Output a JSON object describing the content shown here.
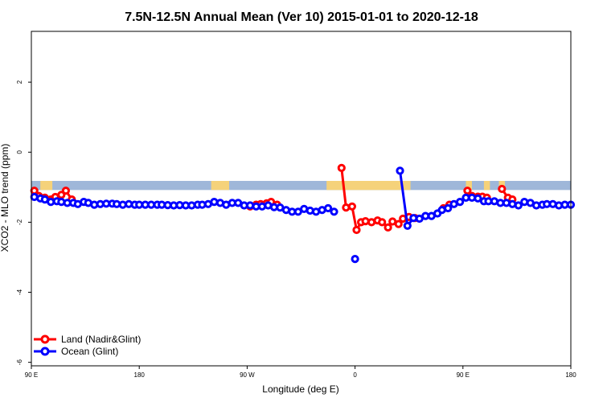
{
  "chart_data": {
    "type": "line",
    "title": "7.5N-12.5N Annual Mean (Ver 10)   2015-01-01 to 2020-12-18",
    "xlabel": "Longitude (deg E)",
    "ylabel": "XCO2 - MLO trend (ppm)",
    "xlim": [
      90,
      450
    ],
    "ylim": [
      -6.1,
      3.45
    ],
    "x_ticks": [
      {
        "value": 90,
        "label": "90 E"
      },
      {
        "value": 162,
        "label": "180"
      },
      {
        "value": 234,
        "label": "90 W"
      },
      {
        "value": 306,
        "label": "0"
      },
      {
        "value": 378,
        "label": "90 E"
      },
      {
        "value": 450,
        "label": "180"
      }
    ],
    "y_ticks": [
      {
        "value": 2,
        "label": "2"
      },
      {
        "value": 0,
        "label": "0"
      },
      {
        "value": -2,
        "label": "-2"
      },
      {
        "value": -4,
        "label": "-4"
      },
      {
        "value": -6,
        "label": "-6"
      }
    ],
    "land_band": {
      "y_top": -0.82,
      "y_bottom": -1.08,
      "color": "#9fb7d9",
      "land_color": "#f5d27a"
    },
    "legend": {
      "position": "bottom-left"
    },
    "series": [
      {
        "name": "Land (Nadir&Glint)",
        "color": "#ff0000",
        "segments": [
          [
            [
              92,
              -1.1
            ],
            [
              95,
              -1.25
            ],
            [
              99,
              -1.3
            ],
            [
              103,
              -1.35
            ],
            [
              106,
              -1.28
            ],
            [
              110,
              -1.22
            ],
            [
              113,
              -1.1
            ],
            [
              117,
              -1.35
            ]
          ],
          [
            [
              236,
              -1.55
            ],
            [
              240,
              -1.5
            ],
            [
              243,
              -1.48
            ],
            [
              247,
              -1.46
            ],
            [
              250,
              -1.42
            ],
            [
              254,
              -1.5
            ]
          ],
          [
            [
              297,
              -0.45
            ],
            [
              300,
              -1.58
            ],
            [
              304,
              -1.55
            ],
            [
              307,
              -2.22
            ],
            [
              310,
              -2.0
            ],
            [
              313,
              -1.97
            ],
            [
              317,
              -2.0
            ],
            [
              321,
              -1.95
            ],
            [
              324,
              -2.0
            ],
            [
              328,
              -2.15
            ],
            [
              331,
              -1.98
            ],
            [
              335,
              -2.05
            ],
            [
              338,
              -1.9
            ],
            [
              342,
              -1.85
            ],
            [
              346,
              -1.88
            ]
          ],
          [
            [
              365,
              -1.6
            ],
            [
              369,
              -1.5
            ]
          ],
          [
            [
              381,
              -1.1
            ],
            [
              384,
              -1.25
            ],
            [
              388,
              -1.27
            ],
            [
              391,
              -1.27
            ],
            [
              394,
              -1.3
            ]
          ],
          [
            [
              404,
              -1.05
            ],
            [
              408,
              -1.3
            ],
            [
              411,
              -1.35
            ]
          ]
        ]
      },
      {
        "name": "Ocean (Glint)",
        "color": "#0000ff",
        "segments": [
          [
            [
              92,
              -1.28
            ],
            [
              96,
              -1.32
            ],
            [
              99,
              -1.35
            ],
            [
              103,
              -1.42
            ],
            [
              107,
              -1.4
            ],
            [
              110,
              -1.42
            ],
            [
              114,
              -1.45
            ],
            [
              118,
              -1.45
            ],
            [
              121,
              -1.48
            ],
            [
              125,
              -1.42
            ],
            [
              128,
              -1.45
            ],
            [
              132,
              -1.5
            ],
            [
              136,
              -1.48
            ],
            [
              140,
              -1.47
            ],
            [
              144,
              -1.47
            ],
            [
              147,
              -1.48
            ],
            [
              151,
              -1.5
            ],
            [
              155,
              -1.48
            ],
            [
              159,
              -1.5
            ],
            [
              162,
              -1.5
            ],
            [
              166,
              -1.5
            ],
            [
              170,
              -1.5
            ],
            [
              174,
              -1.5
            ],
            [
              177,
              -1.5
            ],
            [
              181,
              -1.51
            ],
            [
              185,
              -1.52
            ],
            [
              189,
              -1.51
            ],
            [
              193,
              -1.52
            ],
            [
              197,
              -1.52
            ],
            [
              201,
              -1.5
            ],
            [
              204,
              -1.5
            ],
            [
              208,
              -1.48
            ],
            [
              212,
              -1.42
            ],
            [
              216,
              -1.45
            ],
            [
              220,
              -1.5
            ],
            [
              224,
              -1.45
            ],
            [
              228,
              -1.45
            ],
            [
              232,
              -1.52
            ],
            [
              236,
              -1.52
            ],
            [
              240,
              -1.55
            ],
            [
              244,
              -1.55
            ],
            [
              248,
              -1.52
            ],
            [
              252,
              -1.57
            ],
            [
              256,
              -1.58
            ],
            [
              260,
              -1.65
            ],
            [
              264,
              -1.7
            ],
            [
              268,
              -1.7
            ],
            [
              272,
              -1.62
            ],
            [
              276,
              -1.67
            ],
            [
              280,
              -1.7
            ],
            [
              284,
              -1.65
            ],
            [
              288,
              -1.6
            ],
            [
              292,
              -1.7
            ]
          ],
          [
            [
              306,
              -3.05
            ]
          ],
          [
            [
              336,
              -0.53
            ],
            [
              341,
              -2.1
            ],
            [
              345,
              -1.88
            ],
            [
              349,
              -1.9
            ],
            [
              353,
              -1.82
            ],
            [
              357,
              -1.82
            ],
            [
              361,
              -1.75
            ],
            [
              364,
              -1.65
            ],
            [
              368,
              -1.6
            ],
            [
              372,
              -1.48
            ],
            [
              376,
              -1.42
            ],
            [
              380,
              -1.3
            ],
            [
              384,
              -1.3
            ],
            [
              388,
              -1.32
            ],
            [
              392,
              -1.4
            ],
            [
              395,
              -1.4
            ],
            [
              399,
              -1.4
            ],
            [
              403,
              -1.45
            ],
            [
              407,
              -1.45
            ],
            [
              411,
              -1.48
            ],
            [
              415,
              -1.52
            ],
            [
              419,
              -1.42
            ],
            [
              423,
              -1.45
            ],
            [
              427,
              -1.52
            ],
            [
              431,
              -1.5
            ],
            [
              434,
              -1.48
            ],
            [
              438,
              -1.48
            ],
            [
              442,
              -1.52
            ],
            [
              446,
              -1.5
            ],
            [
              450,
              -1.5
            ]
          ]
        ]
      }
    ]
  }
}
